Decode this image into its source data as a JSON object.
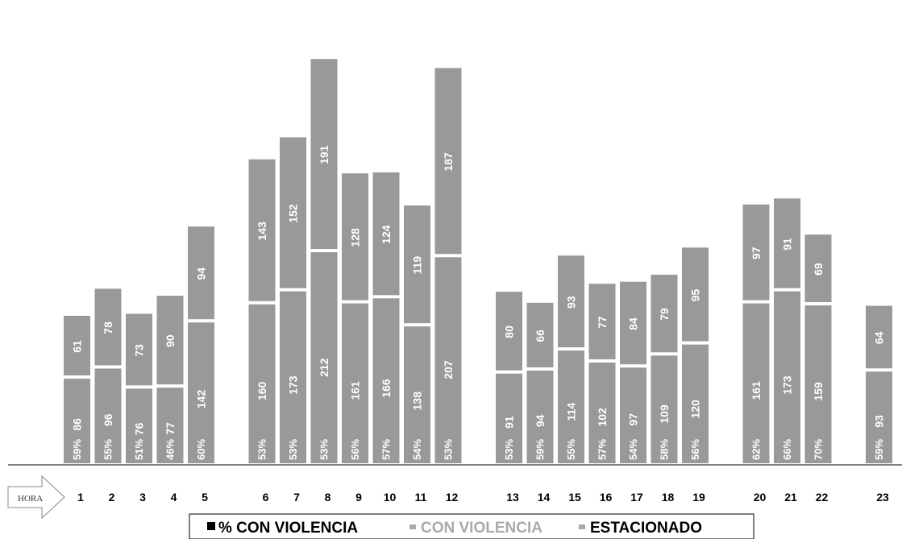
{
  "chart_data": {
    "type": "bar",
    "stacked": true,
    "axis_marker": "HORA",
    "categories": [
      "1",
      "2",
      "3",
      "4",
      "5",
      "6",
      "7",
      "8",
      "9",
      "10",
      "11",
      "12",
      "13",
      "14",
      "15",
      "16",
      "17",
      "18",
      "19",
      "20",
      "21",
      "22",
      "23"
    ],
    "series": [
      {
        "name": "CON VIOLENCIA",
        "values": [
          86,
          96,
          76,
          77,
          142,
          160,
          173,
          212,
          161,
          166,
          138,
          207,
          91,
          94,
          114,
          102,
          97,
          109,
          120,
          161,
          173,
          159,
          93
        ]
      },
      {
        "name": "ESTACIONADO",
        "values": [
          61,
          78,
          73,
          90,
          94,
          143,
          152,
          191,
          128,
          124,
          119,
          187,
          80,
          66,
          93,
          77,
          84,
          79,
          95,
          97,
          91,
          69,
          64
        ]
      },
      {
        "name": "% CON VIOLENCIA",
        "values": [
          "59%",
          "55%",
          "51%",
          "46%",
          "60%",
          "53%",
          "53%",
          "53%",
          "56%",
          "57%",
          "54%",
          "53%",
          "53%",
          "59%",
          "55%",
          "57%",
          "54%",
          "58%",
          "56%",
          "62%",
          "66%",
          "70%",
          "59%"
        ]
      }
    ],
    "groups": [
      [
        0,
        1,
        2,
        3,
        4
      ],
      [
        5,
        6,
        7,
        8,
        9,
        10,
        11
      ],
      [
        12,
        13,
        14,
        15,
        16,
        17,
        18
      ],
      [
        19,
        20,
        21
      ],
      [
        22
      ]
    ],
    "legend_position": "bottom",
    "colors": {
      "bar": "#999999",
      "separator": "#ffffff",
      "legend_pct": "#000000",
      "legend_con": "#aaaaaa",
      "legend_est": "#000000",
      "axis": "#000000"
    }
  }
}
